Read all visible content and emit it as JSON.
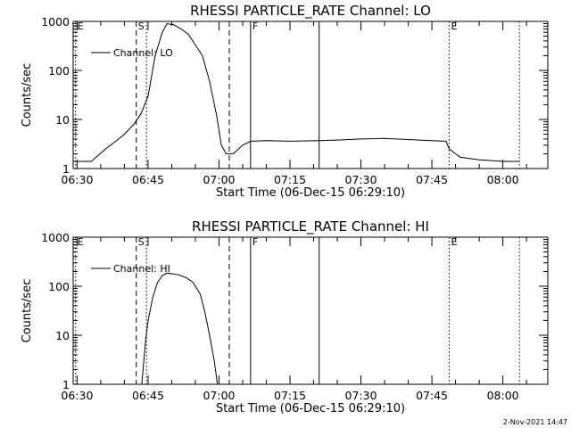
{
  "footer_stamp": "2-Nov-2021 14:47",
  "chart_data": [
    {
      "type": "line",
      "title": "RHESSI PARTICLE_RATE Channel: LO",
      "xlabel": "Start Time (06-Dec-15 06:29:10)",
      "ylabel": "Counts/sec",
      "yscale": "log",
      "xlim": [
        "06:29:10",
        "08:09:30"
      ],
      "ylim": [
        1,
        1000
      ],
      "xticks": [
        "06:30",
        "06:45",
        "07:00",
        "07:15",
        "07:30",
        "07:45",
        "08:00"
      ],
      "yticks": [
        "1",
        "10",
        "100",
        "1000"
      ],
      "legend": {
        "position": "top-left",
        "entries": [
          "Channel: LO"
        ]
      },
      "markers": [
        {
          "label": "E",
          "time": "06:29:40",
          "style": "dotted"
        },
        {
          "label": "S",
          "time": "06:42:30",
          "style": "dashed"
        },
        {
          "label": "",
          "time": "06:44:40",
          "style": "dotted"
        },
        {
          "label": "",
          "time": "07:02:10",
          "style": "dashed"
        },
        {
          "label": "F",
          "time": "07:06:40",
          "style": "solid"
        },
        {
          "label": "",
          "time": "07:21:10",
          "style": "solid"
        },
        {
          "label": "E",
          "time": "07:48:40",
          "style": "dotted"
        },
        {
          "label": "",
          "time": "08:03:30",
          "style": "dotted"
        }
      ],
      "series": [
        {
          "name": "Channel: LO",
          "x": [
            "06:29:10",
            "06:33:00",
            "06:36:00",
            "06:38:00",
            "06:40:00",
            "06:42:00",
            "06:43:30",
            "06:45:00",
            "06:46:30",
            "06:48:00",
            "06:49:00",
            "06:50:30",
            "06:52:00",
            "06:53:30",
            "06:55:00",
            "06:56:30",
            "06:58:00",
            "06:59:30",
            "07:00:30",
            "07:01:30",
            "07:03:00",
            "07:05:00",
            "07:06:40",
            "07:10:00",
            "07:15:00",
            "07:21:00",
            "07:25:00",
            "07:30:00",
            "07:35:00",
            "07:40:00",
            "07:45:00",
            "07:48:00",
            "07:48:40",
            "07:51:00",
            "07:55:00",
            "08:00:00",
            "08:03:30"
          ],
          "values": [
            1.4,
            1.4,
            2.5,
            3.5,
            5,
            8,
            13,
            30,
            200,
            600,
            900,
            850,
            700,
            550,
            330,
            200,
            60,
            12,
            3,
            2,
            2,
            3,
            3.6,
            3.7,
            3.6,
            3.7,
            3.8,
            4,
            4.1,
            3.9,
            3.7,
            3.6,
            2.5,
            1.7,
            1.5,
            1.4,
            1.4
          ]
        }
      ]
    },
    {
      "type": "line",
      "title": "RHESSI PARTICLE_RATE Channel: HI",
      "xlabel": "Start Time (06-Dec-15 06:29:10)",
      "ylabel": "Counts/sec",
      "yscale": "log",
      "xlim": [
        "06:29:10",
        "08:09:30"
      ],
      "ylim": [
        1,
        1000
      ],
      "xticks": [
        "06:30",
        "06:45",
        "07:00",
        "07:15",
        "07:30",
        "07:45",
        "08:00"
      ],
      "yticks": [
        "1",
        "10",
        "100",
        "1000"
      ],
      "legend": {
        "position": "top-left",
        "entries": [
          "Channel: HI"
        ]
      },
      "markers": [
        {
          "label": "E",
          "time": "06:29:40",
          "style": "dotted"
        },
        {
          "label": "S",
          "time": "06:42:30",
          "style": "dashed"
        },
        {
          "label": "",
          "time": "06:44:40",
          "style": "dotted"
        },
        {
          "label": "",
          "time": "07:02:10",
          "style": "dashed"
        },
        {
          "label": "F",
          "time": "07:06:40",
          "style": "solid"
        },
        {
          "label": "",
          "time": "07:21:10",
          "style": "solid"
        },
        {
          "label": "E",
          "time": "07:48:40",
          "style": "dotted"
        },
        {
          "label": "",
          "time": "08:03:30",
          "style": "dotted"
        }
      ],
      "series": [
        {
          "name": "Channel: HI",
          "x": [
            "06:43:40",
            "06:44:30",
            "06:45:00",
            "06:46:00",
            "06:47:00",
            "06:48:00",
            "06:49:00",
            "06:50:00",
            "06:51:30",
            "06:53:00",
            "06:54:30",
            "06:56:00",
            "06:57:00",
            "06:58:00",
            "06:59:00",
            "06:59:40"
          ],
          "values": [
            1,
            8,
            20,
            60,
            120,
            165,
            185,
            180,
            170,
            150,
            120,
            70,
            30,
            10,
            3,
            1
          ]
        }
      ]
    }
  ]
}
